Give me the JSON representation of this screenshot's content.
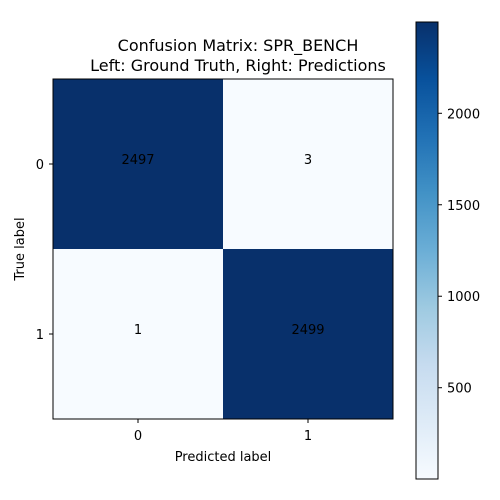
{
  "chart_data": {
    "type": "heatmap",
    "title_line1": "Confusion Matrix: SPR_BENCH",
    "title_line2": "Left: Ground Truth, Right: Predictions",
    "xlabel": "Predicted label",
    "ylabel": "True label",
    "x_categories": [
      "0",
      "1"
    ],
    "y_categories": [
      "0",
      "1"
    ],
    "values": [
      [
        2497,
        3
      ],
      [
        1,
        2499
      ]
    ],
    "colormap": "Blues",
    "color_range": [
      1,
      2499
    ],
    "colorbar_ticks": [
      500,
      1000,
      1500,
      2000
    ],
    "colors": {
      "low": "#f7fbff",
      "high": "#08306b"
    }
  }
}
